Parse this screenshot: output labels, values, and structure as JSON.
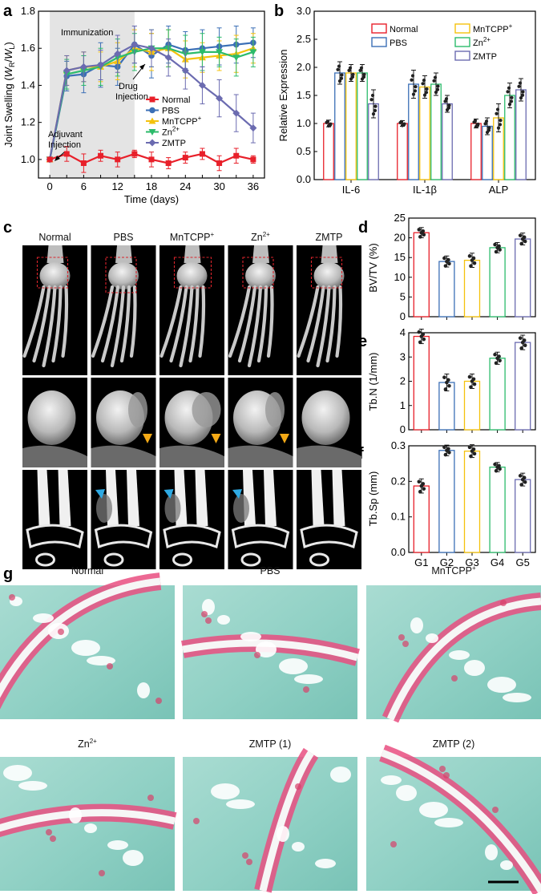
{
  "panels": {
    "a": "a",
    "b": "b",
    "c": "c",
    "d": "d",
    "e": "e",
    "f": "f",
    "g": "g"
  },
  "colors": {
    "Normal": "#e8202a",
    "PBS": "#3b6fb6",
    "MnTCPP": "#f4c20d",
    "Zn": "#2cbb6b",
    "ZMTP": "#6b6bb0"
  },
  "chart_data": [
    {
      "id": "a",
      "type": "line",
      "xlabel_main": "Time (days)",
      "ylabel_prefix": "Joint Swelling (",
      "ylabel_w1": "W",
      "ylabel_s1": "R",
      "ylabel_slash": "/",
      "ylabel_w2": "W",
      "ylabel_s2": "L",
      "ylabel_suffix": ")",
      "xlim": [
        -2,
        38
      ],
      "ylim": [
        0.9,
        1.8
      ],
      "xticks": [
        "0",
        "3",
        "6",
        "9",
        "12",
        "15",
        "18",
        "21",
        "24",
        "27",
        "30",
        "33",
        "36"
      ],
      "xtick_labels": [
        "0",
        "6",
        "12",
        "18",
        "24",
        "30",
        "36"
      ],
      "ytick_labels": [
        "1.0",
        "1.2",
        "1.4",
        "1.6",
        "1.8"
      ],
      "shaded_x": [
        0,
        15
      ],
      "annotations": {
        "immunization": "Immunization",
        "drug1": "Drug",
        "drug2": "Injection",
        "adj1": "Adjuvant",
        "adj2": "Injection"
      },
      "x": [
        0,
        3,
        6,
        9,
        12,
        15,
        18,
        21,
        24,
        27,
        30,
        33,
        36
      ],
      "series": [
        {
          "name": "Normal",
          "values": [
            1.0,
            1.03,
            0.98,
            1.02,
            1.0,
            1.03,
            1.0,
            0.98,
            1.01,
            1.03,
            0.98,
            1.02,
            1.0
          ],
          "err": [
            0,
            0.04,
            0.05,
            0.03,
            0.04,
            0.02,
            0.04,
            0.03,
            0.03,
            0.03,
            0.04,
            0.04,
            0.02
          ]
        },
        {
          "name": "PBS",
          "values": [
            1.0,
            1.45,
            1.46,
            1.51,
            1.5,
            1.62,
            1.56,
            1.62,
            1.59,
            1.6,
            1.61,
            1.62,
            1.63
          ],
          "err": [
            0,
            0.08,
            0.1,
            0.12,
            0.1,
            0.1,
            0.12,
            0.1,
            0.1,
            0.1,
            0.1,
            0.1,
            0.08
          ]
        },
        {
          "name": "MnTCPP",
          "name_base": "MnTCPP",
          "name_sup": "+",
          "values": [
            1.0,
            1.48,
            1.5,
            1.5,
            1.53,
            1.6,
            1.58,
            1.6,
            1.54,
            1.55,
            1.56,
            1.57,
            1.6
          ],
          "err": [
            0,
            0.08,
            0.08,
            0.08,
            0.1,
            0.1,
            0.1,
            0.1,
            0.1,
            0.08,
            0.08,
            0.1,
            0.08
          ]
        },
        {
          "name": "Zn",
          "name_base": "Zn",
          "name_sup": "2+",
          "values": [
            1.0,
            1.46,
            1.48,
            1.5,
            1.55,
            1.58,
            1.6,
            1.6,
            1.57,
            1.58,
            1.58,
            1.55,
            1.58
          ],
          "err": [
            0,
            0.08,
            0.08,
            0.1,
            0.1,
            0.1,
            0.1,
            0.1,
            0.1,
            0.1,
            0.08,
            0.1,
            0.08
          ]
        },
        {
          "name": "ZMTP",
          "values": [
            1.0,
            1.48,
            1.5,
            1.51,
            1.57,
            1.62,
            1.6,
            1.55,
            1.48,
            1.4,
            1.33,
            1.25,
            1.17
          ],
          "err": [
            0,
            0.08,
            0.08,
            0.08,
            0.1,
            0.1,
            0.1,
            0.1,
            0.1,
            0.1,
            0.1,
            0.1,
            0.08
          ]
        }
      ]
    },
    {
      "id": "b",
      "type": "bar",
      "ylabel": "Relative Expression",
      "ylim": [
        0,
        3.0
      ],
      "ytick_labels": [
        "0.0",
        "0.5",
        "1.0",
        "1.5",
        "2.0",
        "2.5",
        "3.0"
      ],
      "categories": [
        "IL-6",
        "IL-1β",
        "ALP"
      ],
      "series": [
        {
          "name": "Normal",
          "values": [
            1.0,
            1.0,
            1.0
          ],
          "err": [
            0.06,
            0.05,
            0.08
          ]
        },
        {
          "name": "PBS",
          "values": [
            1.9,
            1.7,
            0.95
          ],
          "err": [
            0.2,
            0.25,
            0.15
          ]
        },
        {
          "name": "MnTCPP",
          "name_base": "MnTCPP",
          "name_sup": "+",
          "values": [
            1.9,
            1.65,
            1.1
          ],
          "err": [
            0.15,
            0.2,
            0.25
          ]
        },
        {
          "name": "Zn",
          "name_base": "Zn",
          "name_sup": "2+",
          "values": [
            1.9,
            1.7,
            1.5
          ],
          "err": [
            0.15,
            0.2,
            0.22
          ]
        },
        {
          "name": "ZMTP",
          "values": [
            1.35,
            1.35,
            1.6
          ],
          "err": [
            0.25,
            0.15,
            0.2
          ]
        }
      ]
    },
    {
      "id": "d",
      "type": "bar",
      "ylabel": "BV/TV (%)",
      "ylim": [
        0,
        25
      ],
      "ytick_labels": [
        "0",
        "5",
        "10",
        "15",
        "20",
        "25"
      ],
      "categories": [
        "G1",
        "G2",
        "G3",
        "G4",
        "G5"
      ],
      "values": [
        21.3,
        14.0,
        14.3,
        17.5,
        19.7
      ],
      "err": [
        1.3,
        1.4,
        1.8,
        1.3,
        1.5
      ]
    },
    {
      "id": "e",
      "type": "bar",
      "ylabel": "Tb.N (1/mm)",
      "ylim": [
        0,
        4
      ],
      "ytick_labels": [
        "0",
        "1",
        "2",
        "3",
        "4"
      ],
      "categories": [
        "G1",
        "G2",
        "G3",
        "G4",
        "G5"
      ],
      "values": [
        3.85,
        1.95,
        2.0,
        2.95,
        3.6
      ],
      "err": [
        0.3,
        0.35,
        0.3,
        0.25,
        0.3
      ]
    },
    {
      "id": "f",
      "type": "bar",
      "ylabel": "Tb.Sp (mm)",
      "ylim": [
        0,
        0.3
      ],
      "ytick_labels": [
        "0.0",
        "0.1",
        "0.2",
        "0.3"
      ],
      "categories": [
        "G1",
        "G2",
        "G3",
        "G4",
        "G5"
      ],
      "xtick_labels": [
        "G1",
        "G2",
        "G3",
        "G4",
        "G5"
      ],
      "values": [
        0.187,
        0.287,
        0.285,
        0.24,
        0.205
      ],
      "err": [
        0.02,
        0.015,
        0.018,
        0.013,
        0.018
      ]
    }
  ],
  "panel_c": {
    "columns": [
      {
        "base": "Normal",
        "sup": ""
      },
      {
        "base": "PBS",
        "sup": ""
      },
      {
        "base": "MnTCPP",
        "sup": "+"
      },
      {
        "base": "Zn",
        "sup": "2+"
      },
      {
        "base": "ZMTP",
        "sup": ""
      }
    ]
  },
  "panel_g": {
    "tiles": [
      {
        "base": "Normal",
        "sup": ""
      },
      {
        "base": "PBS",
        "sup": ""
      },
      {
        "base": "MnTCPP",
        "sup": "+"
      },
      {
        "base": "Zn",
        "sup": "2+"
      },
      {
        "base": "ZMTP (1)",
        "sup": ""
      },
      {
        "base": "ZMTP (2)",
        "sup": ""
      }
    ]
  }
}
